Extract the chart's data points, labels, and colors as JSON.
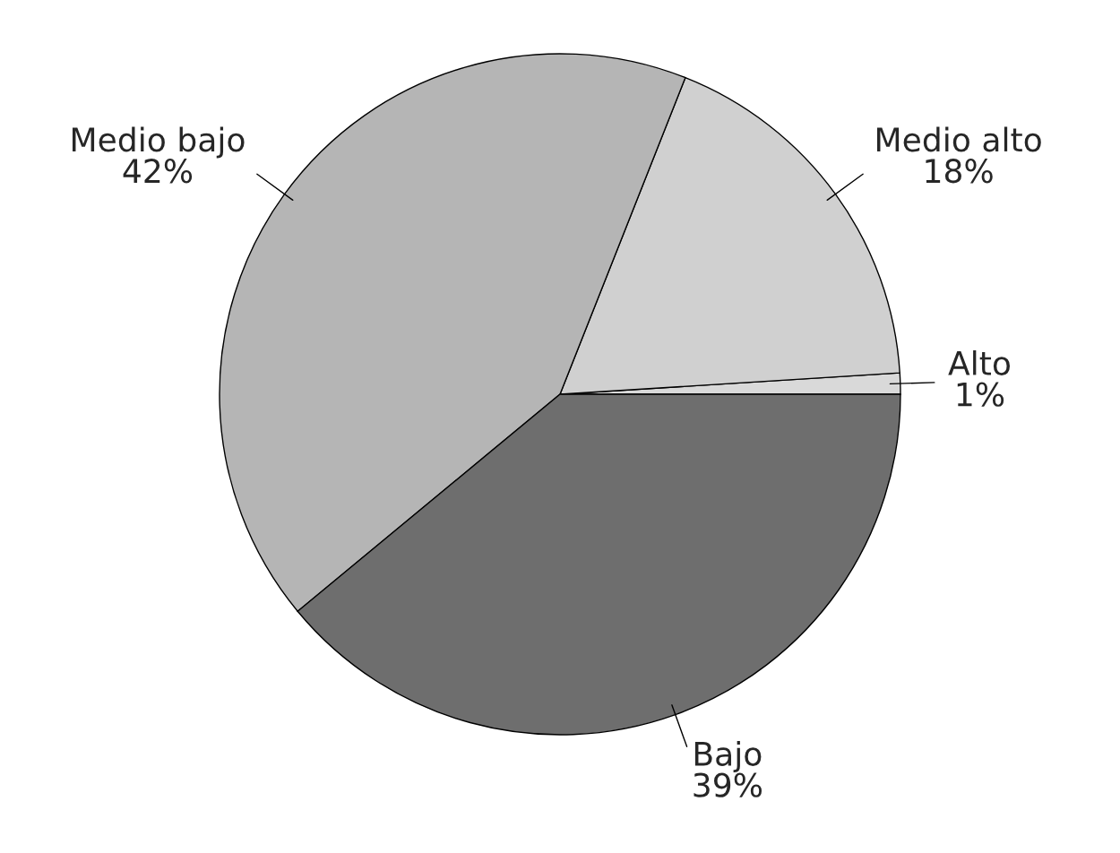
{
  "chart_data": {
    "type": "pie",
    "categories": [
      "Alto",
      "Medio alto",
      "Medio bajo",
      "Bajo"
    ],
    "values": [
      1,
      18,
      42,
      39
    ],
    "value_labels": [
      "1%",
      "18%",
      "42%",
      "39%"
    ],
    "colors": [
      "#d9d9d9",
      "#d0d0d0",
      "#b5b5b5",
      "#6e6e6e"
    ]
  }
}
